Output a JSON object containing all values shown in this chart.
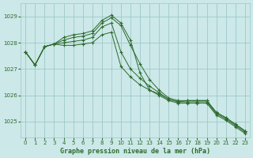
{
  "title": "Graphe pression niveau de la mer (hPa)",
  "bg_color": "#cce8e8",
  "grid_color": "#9ec8c8",
  "line_color": "#2d6a2d",
  "xlim": [
    -0.5,
    23.5
  ],
  "ylim": [
    1024.4,
    1029.5
  ],
  "yticks": [
    1025,
    1026,
    1027,
    1028,
    1029
  ],
  "xticks": [
    0,
    1,
    2,
    3,
    4,
    5,
    6,
    7,
    8,
    9,
    10,
    11,
    12,
    13,
    14,
    15,
    16,
    17,
    18,
    19,
    20,
    21,
    22,
    23
  ],
  "series": [
    [
      1027.65,
      1027.15,
      1027.85,
      1027.95,
      1028.2,
      1028.3,
      1028.35,
      1028.45,
      1028.85,
      1029.05,
      1028.75,
      1028.1,
      1026.85,
      1026.2,
      1026.05,
      1025.85,
      1025.75,
      1025.8,
      1025.8,
      1025.8,
      1025.35,
      1025.15,
      1024.9,
      1024.65
    ],
    [
      1027.65,
      1027.15,
      1027.85,
      1027.95,
      1028.1,
      1028.2,
      1028.25,
      1028.35,
      1028.75,
      1028.95,
      1028.65,
      1027.9,
      1027.2,
      1026.6,
      1026.2,
      1025.9,
      1025.8,
      1025.8,
      1025.8,
      1025.8,
      1025.35,
      1025.15,
      1024.9,
      1024.65
    ],
    [
      1027.65,
      1027.15,
      1027.85,
      1027.95,
      1028.0,
      1028.05,
      1028.1,
      1028.2,
      1028.6,
      1028.75,
      1027.65,
      1027.0,
      1026.65,
      1026.35,
      1026.1,
      1025.85,
      1025.75,
      1025.75,
      1025.75,
      1025.75,
      1025.3,
      1025.1,
      1024.85,
      1024.6
    ],
    [
      1027.65,
      1027.15,
      1027.85,
      1027.95,
      1027.9,
      1027.9,
      1027.95,
      1028.0,
      1028.3,
      1028.4,
      1027.1,
      1026.7,
      1026.4,
      1026.2,
      1026.0,
      1025.8,
      1025.7,
      1025.7,
      1025.7,
      1025.7,
      1025.25,
      1025.05,
      1024.8,
      1024.55
    ]
  ],
  "title_fontsize": 6,
  "tick_fontsize": 5,
  "linewidth": 0.7,
  "markersize": 2.5
}
